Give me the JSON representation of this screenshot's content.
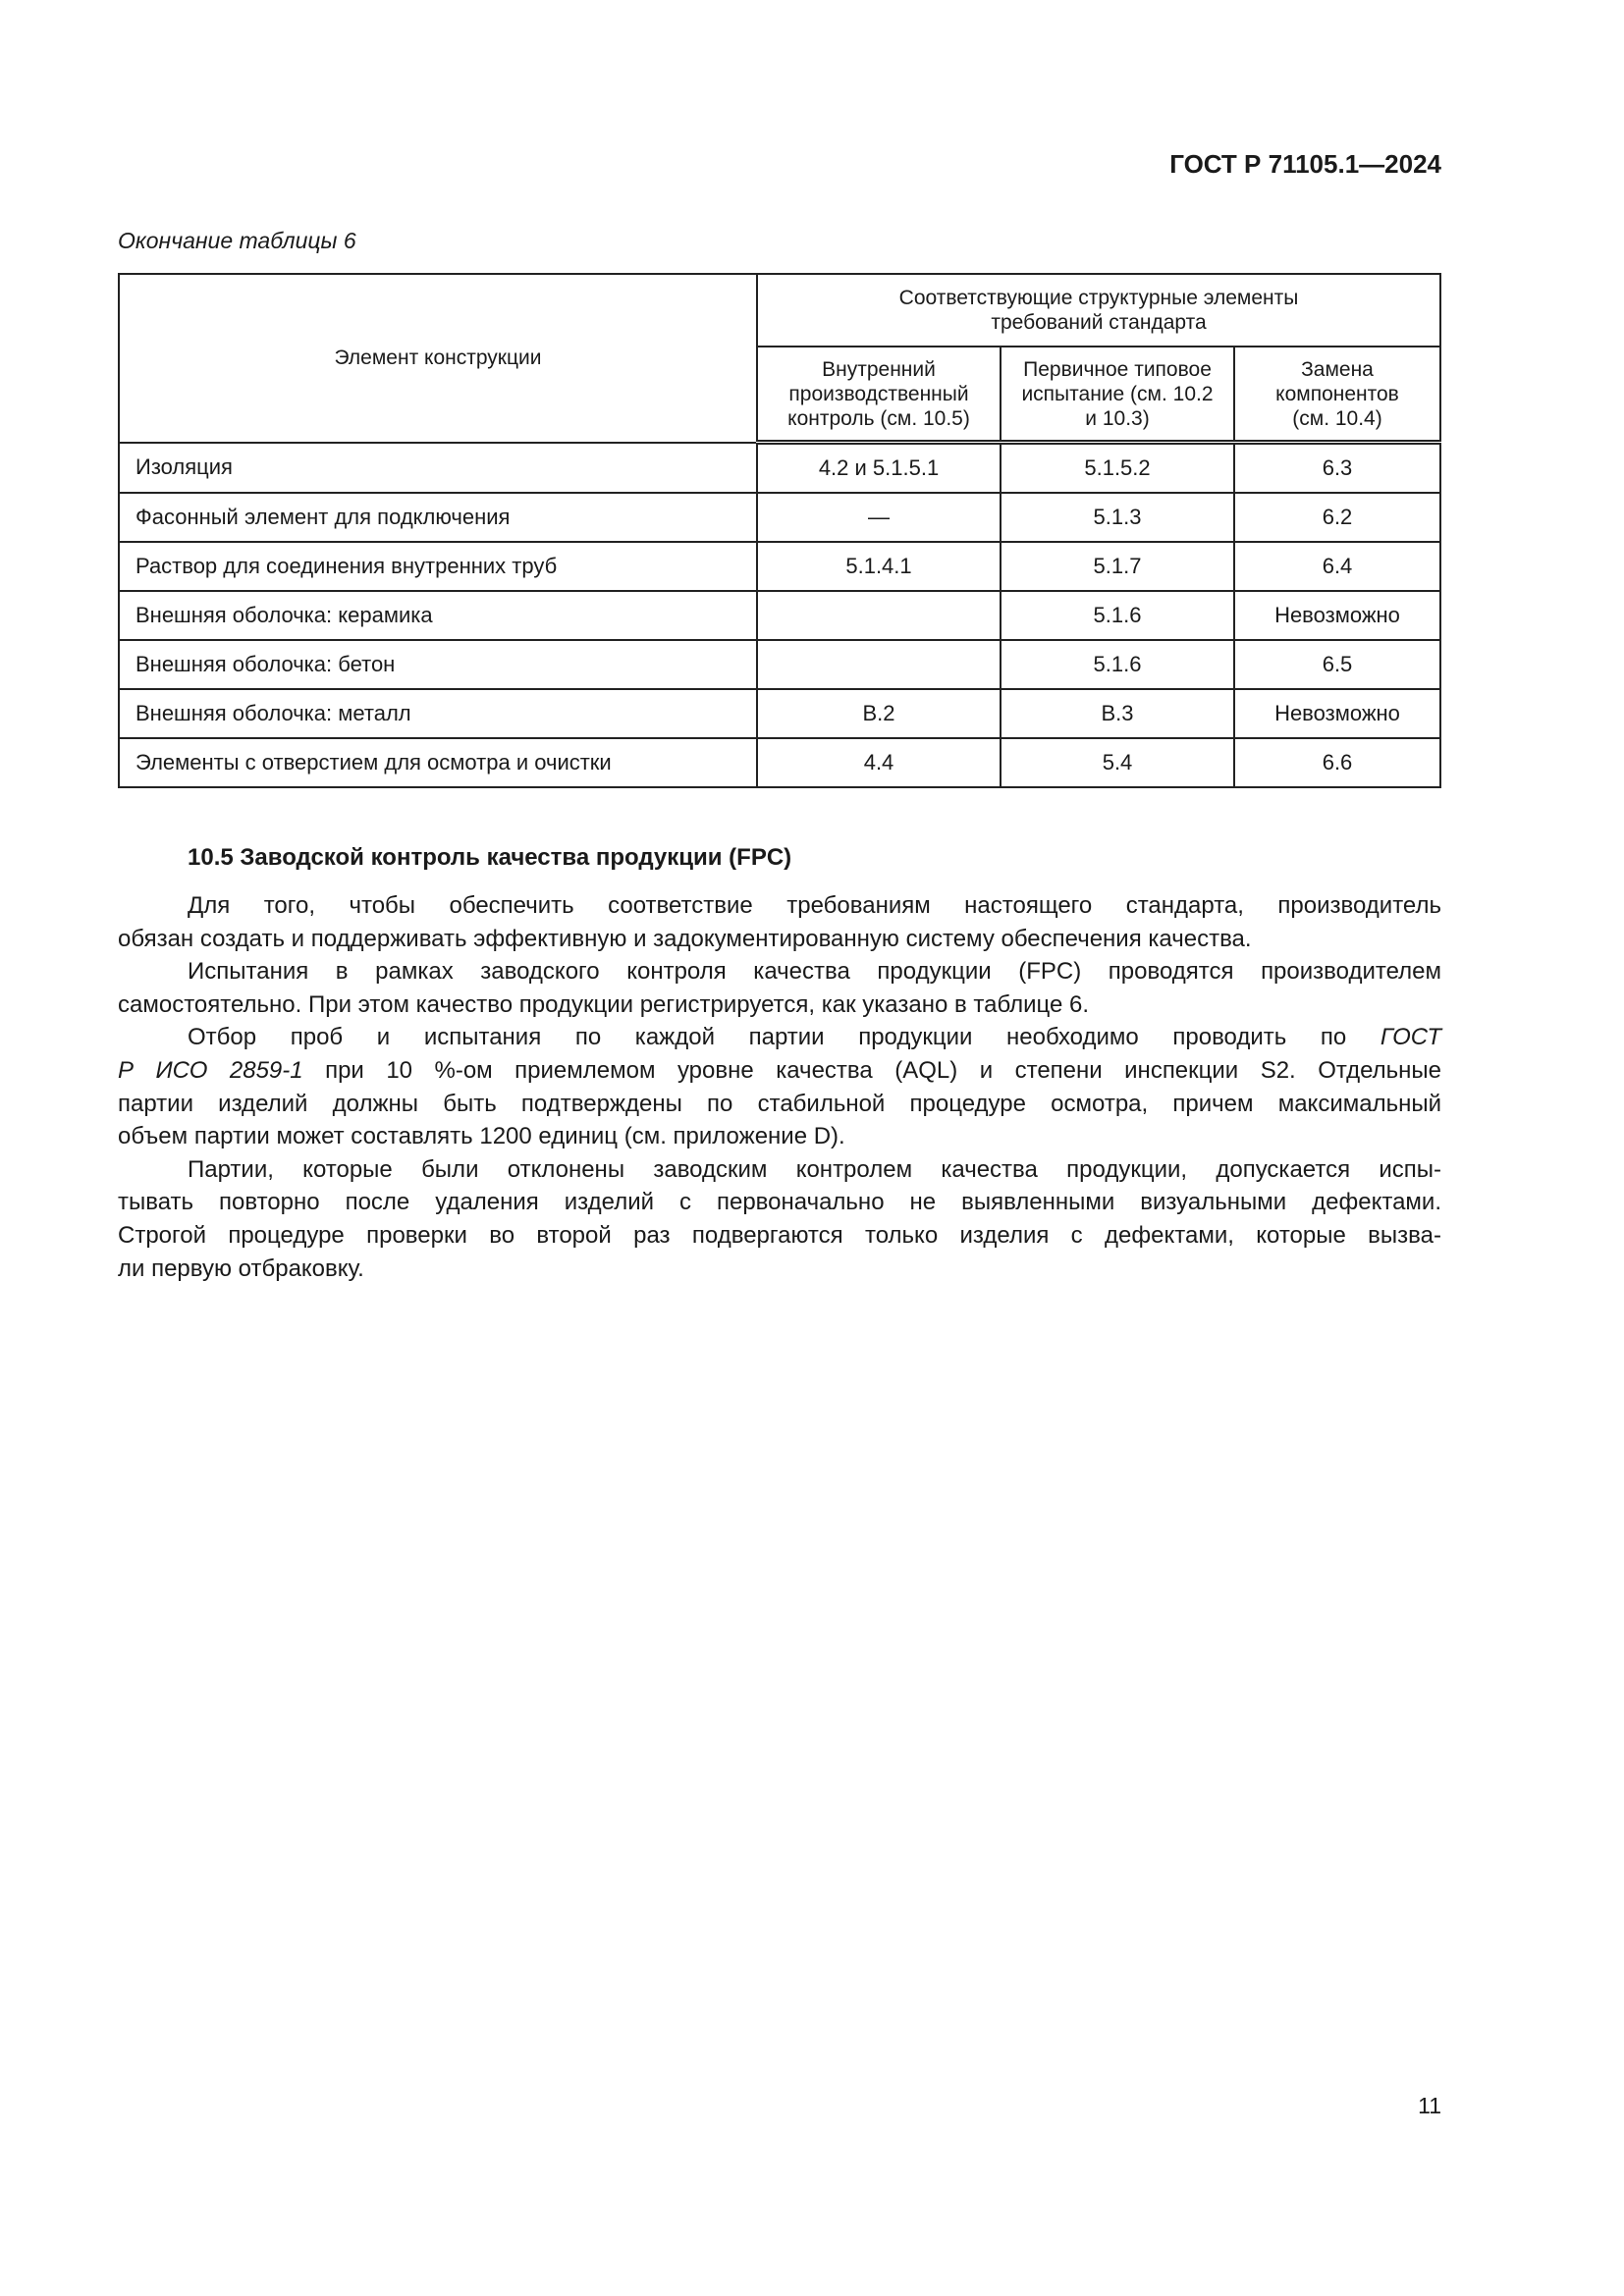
{
  "header": {
    "doc_id": "ГОСТ Р 71105.1—2024"
  },
  "caption": "Окончание таблицы 6",
  "table": {
    "col0_header": "Элемент конструкции",
    "group_header": "Соответствующие структурные элементы требований стандарта",
    "col_headers": [
      "Внутренний производственный контроль (см. 10.5)",
      "Первичное типовое испытание (см. 10.2 и 10.3)",
      "Замена компонентов (см. 10.4)"
    ],
    "rows": [
      [
        "Изоляция",
        "4.2 и 5.1.5.1",
        "5.1.5.2",
        "6.3"
      ],
      [
        "Фасонный элемент для подключения",
        "—",
        "5.1.3",
        "6.2"
      ],
      [
        "Раствор для соединения внутренних труб",
        "5.1.4.1",
        "5.1.7",
        "6.4"
      ],
      [
        "Внешняя оболочка: керамика",
        "",
        "5.1.6",
        "Невозможно"
      ],
      [
        "Внешняя оболочка: бетон",
        "",
        "5.1.6",
        "6.5"
      ],
      [
        "Внешняя оболочка: металл",
        "B.2",
        "B.3",
        "Невозможно"
      ],
      [
        "Элементы с отверстием для осмотра и очистки",
        "4.4",
        "5.4",
        "6.6"
      ]
    ]
  },
  "section": {
    "heading": "10.5 Заводской контроль качества продукции (FPC)",
    "p1": [
      "Для того, чтобы обеспечить соответствие требованиям настоящего стандарта, производитель",
      "обязан создать и поддерживать эффективную и задокументированную систему обеспечения качества."
    ],
    "p2": [
      "Испытания в рамках заводского контроля качества продукции (FPC) проводятся производителем",
      "самостоятельно. При этом качество продукции регистрируется, как указано в таблице 6."
    ],
    "p3": {
      "l1_text": "Отбор проб и испытания по каждой партии продукции необходимо проводить по ",
      "l1_italic": "ГОСТ",
      "l2_italic": "Р ИСО 2859-1",
      "l2_text": " при 10 %-ом приемлемом уровне качества (AQL) и степени инспекции S2. Отдельные",
      "l3": "партии изделий должны быть подтверждены по стабильной процедуре осмотра, причем максимальный",
      "l4": "объем партии может составлять 1200 единиц (см. приложение D)."
    },
    "p4": [
      "Партии, которые были отклонены заводским контролем качества продукции, допускается испы-",
      "тывать повторно после удаления изделий с первоначально не выявленными визуальными дефектами.",
      "Строгой процедуре проверки во второй раз подвергаются только изделия с дефектами, которые вызва-",
      "ли первую отбраковку."
    ]
  },
  "page_number": "11"
}
